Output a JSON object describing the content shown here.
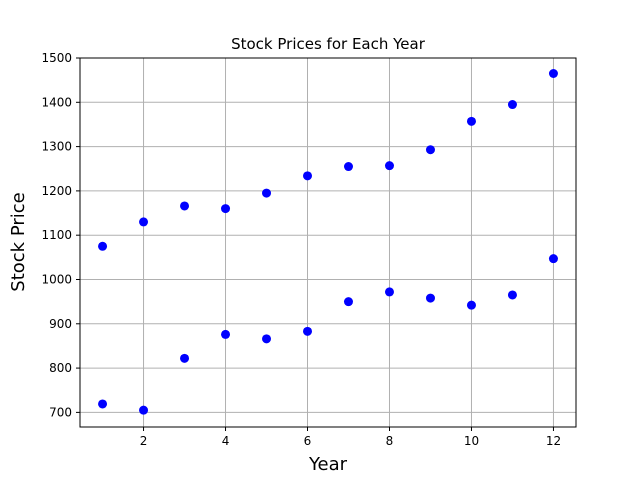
{
  "chart_data": {
    "type": "scatter",
    "title": "Stock Prices for Each Year",
    "xlabel": "Year",
    "ylabel": "Stock Price",
    "xlim": [
      0.45,
      12.55
    ],
    "ylim": [
      667,
      1500
    ],
    "xticks": [
      2,
      4,
      6,
      8,
      10,
      12
    ],
    "yticks": [
      700,
      800,
      900,
      1000,
      1100,
      1200,
      1300,
      1400,
      1500
    ],
    "grid": true,
    "colors": {
      "marker": "#0000ff"
    },
    "series": [
      {
        "x": [
          1,
          2,
          3,
          4,
          5,
          6,
          7,
          8,
          9,
          10,
          11,
          12
        ],
        "values": [
          1075,
          1130,
          1166,
          1160,
          1195,
          1234,
          1255,
          1257,
          1293,
          1357,
          1395,
          1465
        ]
      },
      {
        "x": [
          1,
          2,
          3,
          4,
          5,
          6,
          7,
          8,
          9,
          10,
          11,
          12
        ],
        "values": [
          719,
          705,
          822,
          876,
          866,
          883,
          950,
          972,
          958,
          942,
          965,
          1047
        ]
      }
    ]
  }
}
